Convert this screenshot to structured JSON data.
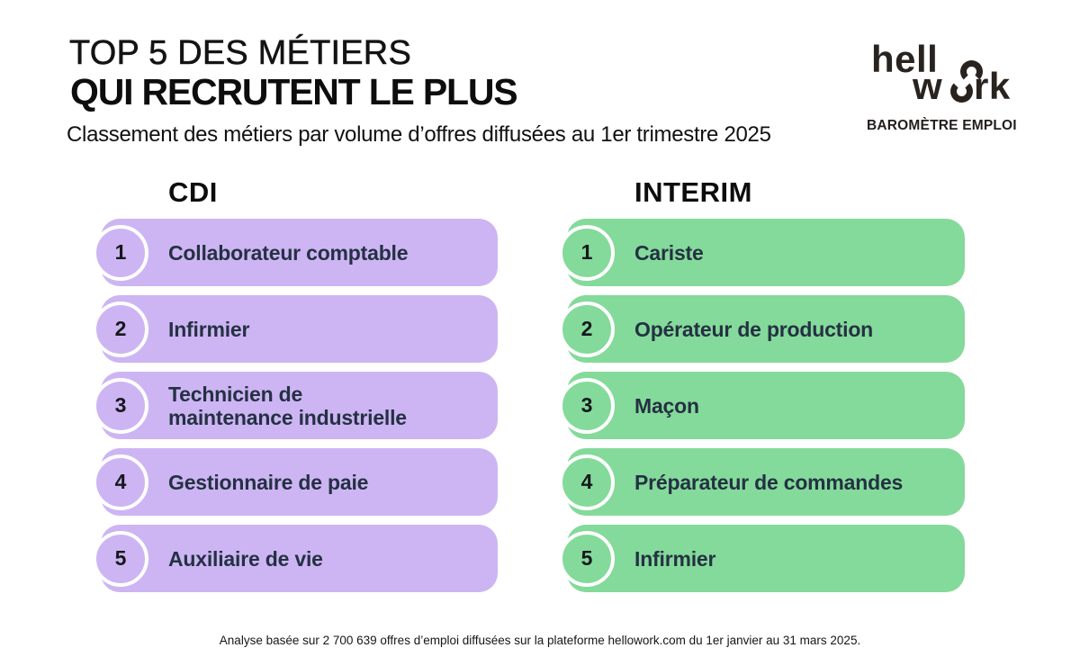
{
  "header": {
    "title_line1": "TOP 5 DES MÉTIERS",
    "title_line2": "QUI RECRUTENT LE PLUS",
    "subtitle": "Classement des métiers par volume d’offres diffusées au 1er trimestre 2025"
  },
  "logo": {
    "part1": "hell",
    "part2_w": "w",
    "part2_rk": "rk",
    "tagline": "BAROMÈTRE EMPLOI"
  },
  "columns": [
    {
      "title": "CDI",
      "theme": "purple",
      "items": [
        {
          "rank": "1",
          "label": "Collaborateur comptable"
        },
        {
          "rank": "2",
          "label": "Infirmier"
        },
        {
          "rank": "3",
          "label": "Technicien de\nmaintenance industrielle"
        },
        {
          "rank": "4",
          "label": "Gestionnaire de paie"
        },
        {
          "rank": "5",
          "label": "Auxiliaire de vie"
        }
      ]
    },
    {
      "title": "INTERIM",
      "theme": "green",
      "items": [
        {
          "rank": "1",
          "label": "Cariste"
        },
        {
          "rank": "2",
          "label": "Opérateur de production"
        },
        {
          "rank": "3",
          "label": "Maçon"
        },
        {
          "rank": "4",
          "label": "Préparateur de commandes"
        },
        {
          "rank": "5",
          "label": "Infirmier"
        }
      ]
    }
  ],
  "footer": {
    "note": "Analyse basée sur 2 700 639 offres d’emploi diffusées sur la plateforme hellowork.com du 1er janvier au 31 mars 2025."
  },
  "colors": {
    "purple": "#cdb5f3",
    "green": "#84da9a",
    "label_text": "#243143"
  },
  "chart_data": {
    "type": "table",
    "title": "TOP 5 DES MÉTIERS QUI RECRUTENT LE PLUS",
    "subtitle": "Classement des métiers par volume d’offres diffusées au 1er trimestre 2025",
    "columns": [
      "CDI",
      "INTERIM"
    ],
    "rankings": {
      "CDI": [
        "Collaborateur comptable",
        "Infirmier",
        "Technicien de maintenance industrielle",
        "Gestionnaire de paie",
        "Auxiliaire de vie"
      ],
      "INTERIM": [
        "Cariste",
        "Opérateur de production",
        "Maçon",
        "Préparateur de commandes",
        "Infirmier"
      ]
    },
    "source_note": "Analyse basée sur 2 700 639 offres d’emploi diffusées sur la plateforme hellowork.com du 1er janvier au 31 mars 2025.",
    "legend_position": "none",
    "grid": false
  }
}
